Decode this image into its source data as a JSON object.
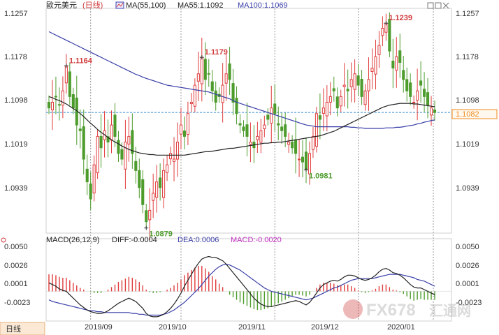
{
  "header": {
    "symbol": "歐元美元",
    "period": "(日线)",
    "ma_label": "MA(55,100)",
    "ma55_label": "MA55:1.1092",
    "ma100_label": "MA100:1.1069"
  },
  "macd_header": {
    "label": "MACD(26,12,9)",
    "diff_label": "DIFF:-0.0004",
    "dea_label": "DEA:0.0006",
    "macd_label": "MACD:-0.0020"
  },
  "bottom_tab": "日线",
  "watermark": {
    "text": "FX678",
    "suffix": "汇通网"
  },
  "colors": {
    "up": "#e03c3c",
    "down": "#4d9c2d",
    "ma55": "#222222",
    "ma100": "#3a3fa8",
    "price_line": "#3a8fd1",
    "macd_diff": "#222222",
    "macd_dea": "#3a3fa8",
    "current_price_box": "#f08a1c"
  },
  "chart_data": [
    {
      "type": "candlestick",
      "y_ticks": [
        "1.1257",
        "1.1178",
        "1.1098",
        "1.1019",
        "1.0939"
      ],
      "ylim": [
        1.087,
        1.1265
      ],
      "x_ticks": [
        "2019/09",
        "2019/10",
        "2019/11",
        "2019/12",
        "2020/01"
      ],
      "current_price": "1.1082",
      "annotations": [
        {
          "label": "1.1164",
          "value": 1.1164,
          "idx": 5
        },
        {
          "label": "1.1179",
          "value": 1.1179,
          "idx": 44
        },
        {
          "label": "1.0879",
          "value": 1.0879,
          "idx": 28
        },
        {
          "label": "1.0981",
          "value": 1.0981,
          "idx": 74
        },
        {
          "label": "1.1239",
          "value": 1.1239,
          "idx": 97
        }
      ],
      "closes": [
        1.109,
        1.11,
        1.111,
        1.1095,
        1.112,
        1.1164,
        1.111,
        1.109,
        1.106,
        1.105,
        1.1,
        1.096,
        1.093,
        1.099,
        1.104,
        1.102,
        1.105,
        1.103,
        1.106,
        1.104,
        1.101,
        1.1,
        1.103,
        1.104,
        1.101,
        1.098,
        1.095,
        1.092,
        1.089,
        1.091,
        1.094,
        1.096,
        1.095,
        1.098,
        1.099,
        1.101,
        1.1,
        1.103,
        1.106,
        1.104,
        1.108,
        1.11,
        1.113,
        1.115,
        1.1179,
        1.114,
        1.115,
        1.112,
        1.11,
        1.111,
        1.113,
        1.115,
        1.114,
        1.11,
        1.108,
        1.106,
        1.105,
        1.104,
        1.103,
        1.102,
        1.104,
        1.105,
        1.106,
        1.107,
        1.109,
        1.108,
        1.106,
        1.105,
        1.104,
        1.103,
        1.102,
        1.101,
        1.1,
        1.0995,
        1.0981,
        1.101,
        1.104,
        1.108,
        1.107,
        1.109,
        1.11,
        1.111,
        1.112,
        1.109,
        1.111,
        1.113,
        1.112,
        1.114,
        1.115,
        1.113,
        1.111,
        1.112,
        1.114,
        1.116,
        1.118,
        1.12,
        1.123,
        1.1239,
        1.119,
        1.116,
        1.118,
        1.117,
        1.114,
        1.112,
        1.111,
        1.11,
        1.112,
        1.113,
        1.111,
        1.1095,
        1.109,
        1.1082
      ],
      "ma55": [
        1.111,
        1.1108,
        1.1105,
        1.1103,
        1.11,
        1.1097,
        1.1093,
        1.1089,
        1.1085,
        1.108,
        1.1075,
        1.1069,
        1.1063,
        1.1058,
        1.1052,
        1.1047,
        1.1043,
        1.1038,
        1.1034,
        1.103,
        1.1027,
        1.1023,
        1.102,
        1.1017,
        1.1015,
        1.1013,
        1.1011,
        1.101,
        1.1009,
        1.1008,
        1.1008,
        1.1007,
        1.1007,
        1.1007,
        1.1007,
        1.1007,
        1.1007,
        1.1007,
        1.1007,
        1.1007,
        1.1008,
        1.1009,
        1.101,
        1.1011,
        1.1012,
        1.1013,
        1.1013,
        1.1014,
        1.1015,
        1.1016,
        1.1017,
        1.1018,
        1.1019,
        1.1019,
        1.102,
        1.1021,
        1.1022,
        1.1023,
        1.1024,
        1.1025,
        1.1026,
        1.1027,
        1.1028,
        1.1028,
        1.1029,
        1.1029,
        1.103,
        1.103,
        1.1031,
        1.1032,
        1.1033,
        1.1034,
        1.1035,
        1.1036,
        1.1037,
        1.1038,
        1.1039,
        1.104,
        1.1041,
        1.1043,
        1.1045,
        1.1047,
        1.1049,
        1.1052,
        1.1055,
        1.1058,
        1.1061,
        1.1064,
        1.1067,
        1.107,
        1.1073,
        1.1076,
        1.1079,
        1.1082,
        1.1085,
        1.1088,
        1.1091,
        1.1093,
        1.1095,
        1.1096,
        1.1097,
        1.1098,
        1.1098,
        1.1098,
        1.1098,
        1.1097,
        1.1097,
        1.1096,
        1.1095,
        1.1094,
        1.1093,
        1.1092
      ],
      "ma100": [
        1.1224,
        1.1221,
        1.1218,
        1.1215,
        1.1212,
        1.1209,
        1.1206,
        1.1203,
        1.12,
        1.1197,
        1.1194,
        1.1191,
        1.1188,
        1.1185,
        1.1182,
        1.1179,
        1.1176,
        1.1173,
        1.117,
        1.1167,
        1.1164,
        1.1161,
        1.1158,
        1.1155,
        1.1152,
        1.1149,
        1.1147,
        1.1144,
        1.1142,
        1.114,
        1.1138,
        1.1136,
        1.1134,
        1.1132,
        1.113,
        1.1129,
        1.1128,
        1.1127,
        1.1126,
        1.1125,
        1.1124,
        1.1123,
        1.1122,
        1.1121,
        1.112,
        1.1119,
        1.1118,
        1.1116,
        1.1114,
        1.1112,
        1.111,
        1.1108,
        1.1106,
        1.1103,
        1.11,
        1.1098,
        1.1096,
        1.1094,
        1.1092,
        1.109,
        1.1088,
        1.1086,
        1.1084,
        1.1082,
        1.108,
        1.1078,
        1.1076,
        1.1074,
        1.1072,
        1.107,
        1.1068,
        1.1066,
        1.1064,
        1.1062,
        1.106,
        1.1059,
        1.1058,
        1.1057,
        1.1057,
        1.1057,
        1.1057,
        1.1057,
        1.1057,
        1.1057,
        1.1057,
        1.1057,
        1.1057,
        1.1056,
        1.1056,
        1.1055,
        1.1055,
        1.1054,
        1.1054,
        1.1054,
        1.1054,
        1.1054,
        1.1054,
        1.1055,
        1.1055,
        1.1055,
        1.1056,
        1.1056,
        1.1057,
        1.1058,
        1.1059,
        1.106,
        1.1062,
        1.1063,
        1.1065,
        1.1066,
        1.1068,
        1.1069
      ]
    },
    {
      "type": "macd",
      "y_ticks": [
        "0.0050",
        "0.0026",
        "0.0001",
        "-0.0023"
      ],
      "ylim": [
        -0.0035,
        0.0062
      ],
      "diff": [
        0.001,
        0.0008,
        0.0006,
        0.0003,
        0.0001,
        0.0,
        -0.0004,
        -0.0008,
        -0.0012,
        -0.0016,
        -0.0019,
        -0.0022,
        -0.0024,
        -0.0025,
        -0.0026,
        -0.0026,
        -0.0025,
        -0.0023,
        -0.002,
        -0.0017,
        -0.0014,
        -0.0012,
        -0.001,
        -0.0008,
        -0.001,
        -0.0012,
        -0.0016,
        -0.002,
        -0.0026,
        -0.0029,
        -0.003,
        -0.003,
        -0.0029,
        -0.0027,
        -0.0024,
        -0.002,
        -0.0015,
        -0.0009,
        -0.0002,
        0.0006,
        0.0013,
        0.002,
        0.0027,
        0.0033,
        0.0038,
        0.004,
        0.0041,
        0.004,
        0.004,
        0.0038,
        0.0036,
        0.0032,
        0.0027,
        0.0022,
        0.0017,
        0.0012,
        0.0007,
        0.0002,
        -0.0003,
        -0.0008,
        -0.0012,
        -0.0015,
        -0.0017,
        -0.0018,
        -0.0018,
        -0.0017,
        -0.0016,
        -0.0015,
        -0.0014,
        -0.0013,
        -0.0012,
        -0.0011,
        -0.0012,
        -0.0014,
        -0.0016,
        -0.0013,
        -0.0008,
        -0.0002,
        0.0004,
        0.0008,
        0.001,
        0.0012,
        0.0013,
        0.0012,
        0.0014,
        0.0017,
        0.0019,
        0.0019,
        0.0018,
        0.0016,
        0.0014,
        0.0013,
        0.0014,
        0.0016,
        0.0019,
        0.0023,
        0.0026,
        0.0027,
        0.0025,
        0.0022,
        0.0021,
        0.0019,
        0.0016,
        0.0012,
        0.0008,
        0.0005,
        0.0004,
        0.0004,
        0.0002,
        0.0,
        -0.0002,
        -0.0004
      ],
      "dea": [
        -0.001,
        -0.0012,
        -0.0013,
        -0.0014,
        -0.0015,
        -0.0016,
        -0.0017,
        -0.0018,
        -0.0019,
        -0.002,
        -0.0021,
        -0.0022,
        -0.0023,
        -0.0023,
        -0.0024,
        -0.0024,
        -0.0025,
        -0.0025,
        -0.0025,
        -0.0025,
        -0.0025,
        -0.0025,
        -0.0025,
        -0.0025,
        -0.0026,
        -0.0026,
        -0.0027,
        -0.0027,
        -0.0028,
        -0.0028,
        -0.0028,
        -0.0028,
        -0.0028,
        -0.0027,
        -0.0026,
        -0.0024,
        -0.0022,
        -0.0019,
        -0.0016,
        -0.0013,
        -0.0009,
        -0.0005,
        -0.0001,
        0.0003,
        0.0008,
        0.0013,
        0.0018,
        0.0022,
        0.0026,
        0.0029,
        0.0031,
        0.0032,
        0.0031,
        0.0029,
        0.0027,
        0.0025,
        0.0022,
        0.0019,
        0.0016,
        0.0013,
        0.001,
        0.0007,
        0.0004,
        0.0002,
        0.0,
        -0.0001,
        -0.0002,
        -0.0003,
        -0.0004,
        -0.0005,
        -0.0006,
        -0.0007,
        -0.0008,
        -0.0009,
        -0.001,
        -0.0009,
        -0.0008,
        -0.0006,
        -0.0004,
        -0.0002,
        0.0,
        0.0002,
        0.0004,
        0.0005,
        0.0007,
        0.0009,
        0.0011,
        0.0013,
        0.0014,
        0.0015,
        0.0015,
        0.0015,
        0.0015,
        0.0015,
        0.0016,
        0.0017,
        0.0018,
        0.0019,
        0.002,
        0.002,
        0.002,
        0.002,
        0.0019,
        0.0018,
        0.0017,
        0.0016,
        0.0014,
        0.0013,
        0.0012,
        0.001,
        0.0008,
        0.0006
      ]
    }
  ]
}
